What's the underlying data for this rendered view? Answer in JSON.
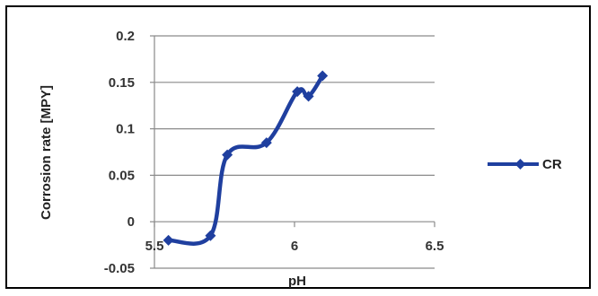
{
  "chart_data": {
    "type": "line",
    "title": "",
    "xlabel": "pH",
    "ylabel": "Corrosion rate [MPY]",
    "xlim": [
      5.5,
      6.5
    ],
    "ylim": [
      -0.05,
      0.2
    ],
    "x_ticks": [
      "5.5",
      "6",
      "6.5"
    ],
    "y_ticks": [
      "0.2",
      "0.15",
      "0.1",
      "0.05",
      "0",
      "-0.05"
    ],
    "grid": "horizontal",
    "legend_position": "right",
    "smooth": true,
    "series": [
      {
        "name": "CR",
        "color": "#1f3f9f",
        "marker": "diamond",
        "points": [
          {
            "x": 5.55,
            "y": -0.02
          },
          {
            "x": 5.7,
            "y": -0.015
          },
          {
            "x": 5.76,
            "y": 0.072
          },
          {
            "x": 5.9,
            "y": 0.085
          },
          {
            "x": 6.01,
            "y": 0.14
          },
          {
            "x": 6.05,
            "y": 0.135
          },
          {
            "x": 6.1,
            "y": 0.157
          }
        ]
      }
    ]
  }
}
